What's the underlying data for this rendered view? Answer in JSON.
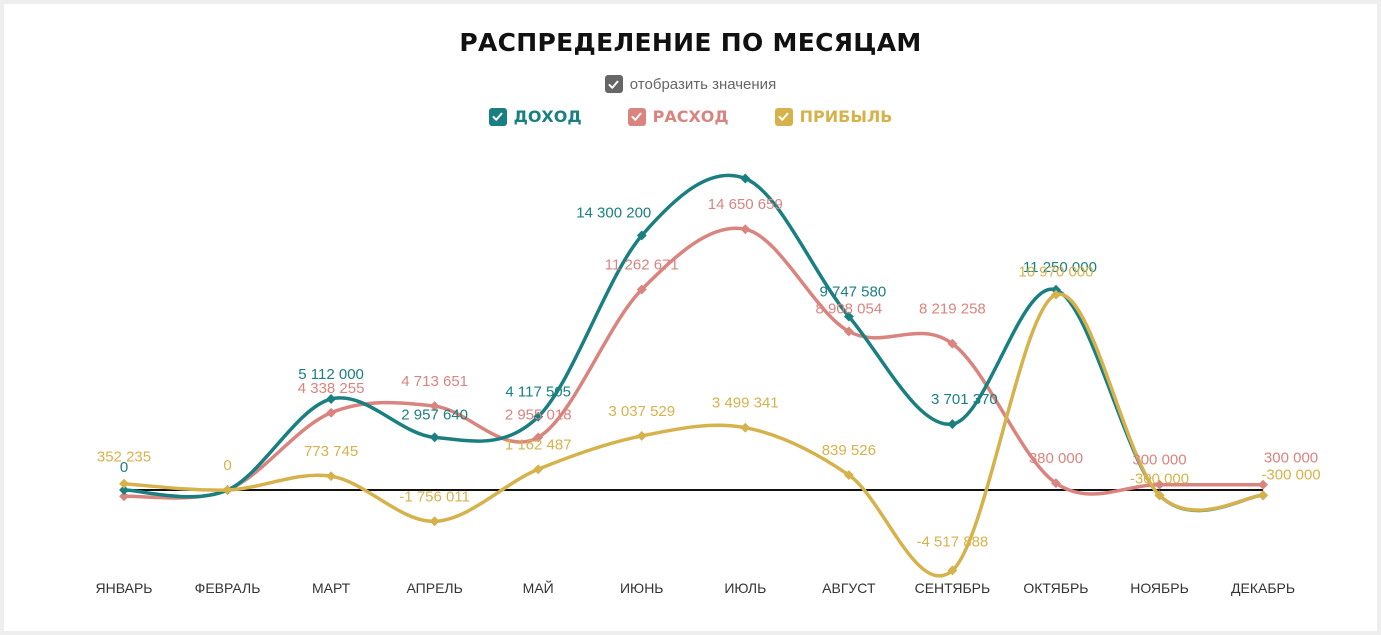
{
  "title": "РАСПРЕДЕЛЕНИЕ ПО МЕСЯЦАМ",
  "show_values": {
    "label": "отобразить значения",
    "checked": true,
    "color": "#666666"
  },
  "legend": [
    {
      "key": "income",
      "label": "ДОХОД",
      "color": "#1a7f80",
      "checked": true
    },
    {
      "key": "expense",
      "label": "РАСХОД",
      "color": "#d9847f",
      "checked": true
    },
    {
      "key": "profit",
      "label": "ПРИБЫЛЬ",
      "color": "#d6b24c",
      "checked": true
    }
  ],
  "chart_data": {
    "type": "line",
    "smooth": true,
    "title": "РАСПРЕДЕЛЕНИЕ ПО МЕСЯЦАМ",
    "categories": [
      "ЯНВАРЬ",
      "ФЕВРАЛЬ",
      "МАРТ",
      "АПРЕЛЬ",
      "МАЙ",
      "ИЮНЬ",
      "ИЮЛЬ",
      "АВГУСТ",
      "СЕНТЯБРЬ",
      "ОКТЯБРЬ",
      "НОЯБРЬ",
      "ДЕКАБРЬ"
    ],
    "zero_line": true,
    "series": [
      {
        "name": "ДОХОД",
        "color": "#1a7f80",
        "values": [
          0,
          0,
          5112000,
          2957640,
          4117505,
          14300200,
          17500000,
          9747580,
          3701370,
          11250000,
          -300000,
          -300000
        ],
        "labels": [
          "0",
          "",
          "5 112 000",
          "2 957 640",
          "4 117 505",
          "14 300 200",
          "",
          "9 747 580",
          "3 701 370",
          "11 250 000",
          "",
          ""
        ]
      },
      {
        "name": "РАСХОД",
        "color": "#d9847f",
        "values": [
          -352235,
          0,
          4338255,
          4713651,
          2955018,
          11262671,
          14650659,
          8908054,
          8219258,
          380000,
          300000,
          300000
        ],
        "labels": [
          "",
          "",
          "4 338 255",
          "4 713 651",
          "2 955 018",
          "11 262 671",
          "14 650 659",
          "8 908 054",
          "8 219 258",
          "380 000",
          "300 000",
          "300 000"
        ]
      },
      {
        "name": "ПРИБЫЛЬ",
        "color": "#d6b24c",
        "values": [
          352235,
          0,
          773745,
          -1756011,
          1162487,
          3037529,
          3499341,
          839526,
          -4517888,
          10970000,
          -300000,
          -300000
        ],
        "labels": [
          "352 235",
          "0",
          "773 745",
          "-1 756 011",
          "1 162 487",
          "3 037 529",
          "3 499 341",
          "839 526",
          "-4 517 888",
          "10 970 000",
          "-300 000",
          "-300 000"
        ]
      }
    ]
  }
}
